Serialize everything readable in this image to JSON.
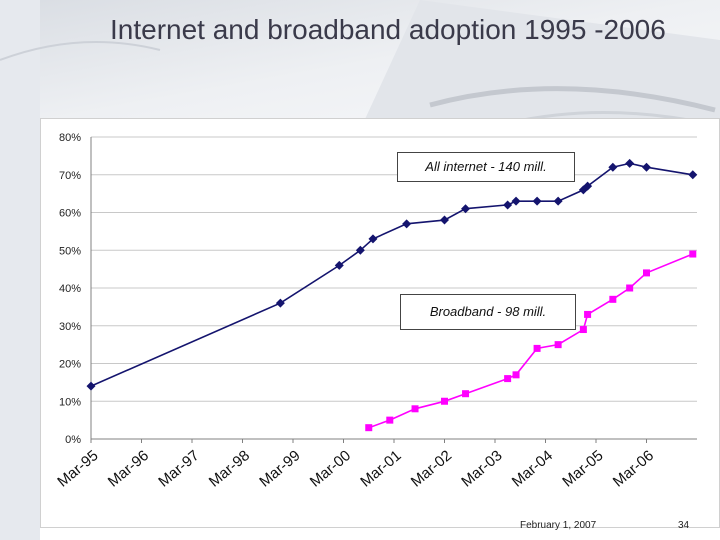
{
  "slide": {
    "title": "Internet and broadband adoption 1995 -2006",
    "footer_date": "February 1, 2007",
    "page_number": "34"
  },
  "colors": {
    "internet_series": "#14146e",
    "broadband_series": "#ff00ff",
    "grid": "#c8c8c8",
    "axis": "#808080"
  },
  "chart_data": {
    "type": "line",
    "title": "",
    "xlabel": "",
    "ylabel": "",
    "ylim": [
      0,
      80
    ],
    "y_ticks": [
      "0%",
      "10%",
      "20%",
      "30%",
      "40%",
      "50%",
      "60%",
      "70%",
      "80%"
    ],
    "x_tick_labels": [
      "Mar-95",
      "Mar-96",
      "Mar-97",
      "Mar-98",
      "Mar-99",
      "Mar-00",
      "Mar-01",
      "Mar-02",
      "Mar-03",
      "Mar-04",
      "Mar-05",
      "Mar-06"
    ],
    "xlim": [
      "1995-03",
      "2007-03"
    ],
    "grid": true,
    "legend": "none",
    "annotations": {
      "internet": "All internet - 140 mill.",
      "broadband": "Broadband -  98 mill."
    },
    "series": [
      {
        "key": "internet",
        "x": [
          "1995-03",
          "1998-12",
          "2000-02",
          "2000-07",
          "2000-10",
          "2001-06",
          "2002-03",
          "2002-08",
          "2003-06",
          "2003-08",
          "2004-01",
          "2004-06",
          "2004-12",
          "2005-01",
          "2005-07",
          "2005-11",
          "2006-03",
          "2007-02"
        ],
        "values": [
          14,
          36,
          46,
          50,
          53,
          57,
          58,
          61,
          62,
          63,
          63,
          63,
          66,
          67,
          72,
          73,
          72,
          70
        ]
      },
      {
        "key": "broadband",
        "x": [
          "2000-09",
          "2001-02",
          "2001-08",
          "2002-03",
          "2002-08",
          "2003-06",
          "2003-08",
          "2004-01",
          "2004-06",
          "2004-12",
          "2005-01",
          "2005-07",
          "2005-11",
          "2006-03",
          "2007-02"
        ],
        "values": [
          3,
          5,
          8,
          10,
          12,
          16,
          17,
          24,
          25,
          29,
          33,
          37,
          40,
          44,
          49
        ]
      }
    ]
  }
}
